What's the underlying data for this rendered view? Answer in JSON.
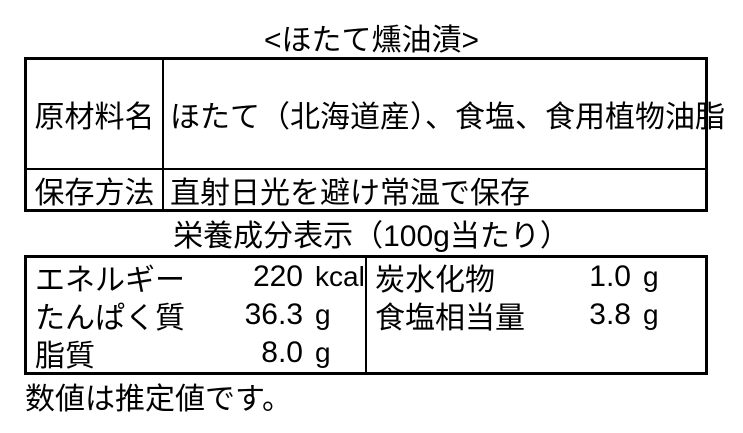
{
  "title": "<ほたて燻油漬>",
  "info_table": {
    "rows": [
      {
        "label": "原材料名",
        "value": "ほたて（北海道産）、食塩、食用植物油脂"
      },
      {
        "label": "保存方法",
        "value": "直射日光を避け常温で保存"
      }
    ]
  },
  "nutrition": {
    "title": "栄養成分表示（100g当たり）",
    "left": [
      {
        "label": "エネルギー",
        "value": "220",
        "unit": "kcal"
      },
      {
        "label": "たんぱく質",
        "value": "36.3",
        "unit": "g"
      },
      {
        "label": "脂質",
        "value": "8.0",
        "unit": "g"
      }
    ],
    "right": [
      {
        "label": "炭水化物",
        "value": "1.0",
        "unit": "g"
      },
      {
        "label": "食塩相当量",
        "value": "3.8",
        "unit": "g"
      }
    ]
  },
  "footnote": "数値は推定値です。",
  "colors": {
    "text": "#000000",
    "border": "#000000",
    "background": "#ffffff"
  }
}
